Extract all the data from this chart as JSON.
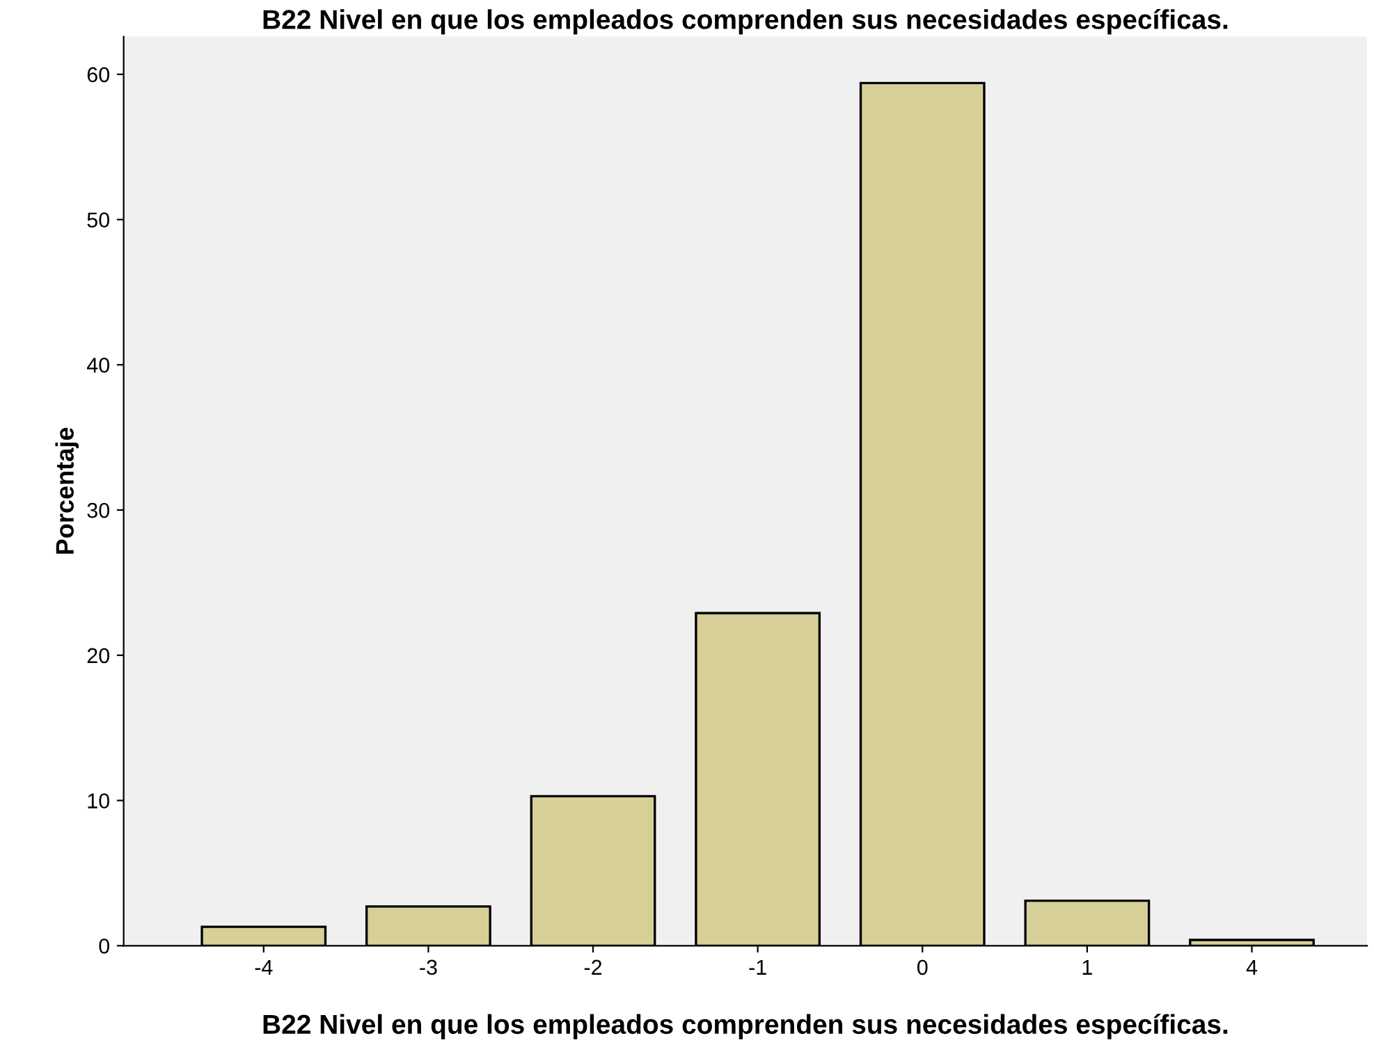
{
  "chart_data": {
    "type": "bar",
    "title": "B22 Nivel en que los empleados comprenden sus necesidades específicas.",
    "xlabel": "B22 Nivel en que los empleados comprenden sus necesidades específicas.",
    "ylabel": "Porcentaje",
    "categories": [
      "-4",
      "-3",
      "-2",
      "-1",
      "0",
      "1",
      "4"
    ],
    "values": [
      1.3,
      2.7,
      10.3,
      22.9,
      59.4,
      3.1,
      0.4
    ],
    "color": "#d6cf98",
    "ylim": [
      0,
      62.6
    ],
    "yticks": [
      0,
      10,
      20,
      30,
      40,
      50,
      60
    ],
    "grid": false
  }
}
